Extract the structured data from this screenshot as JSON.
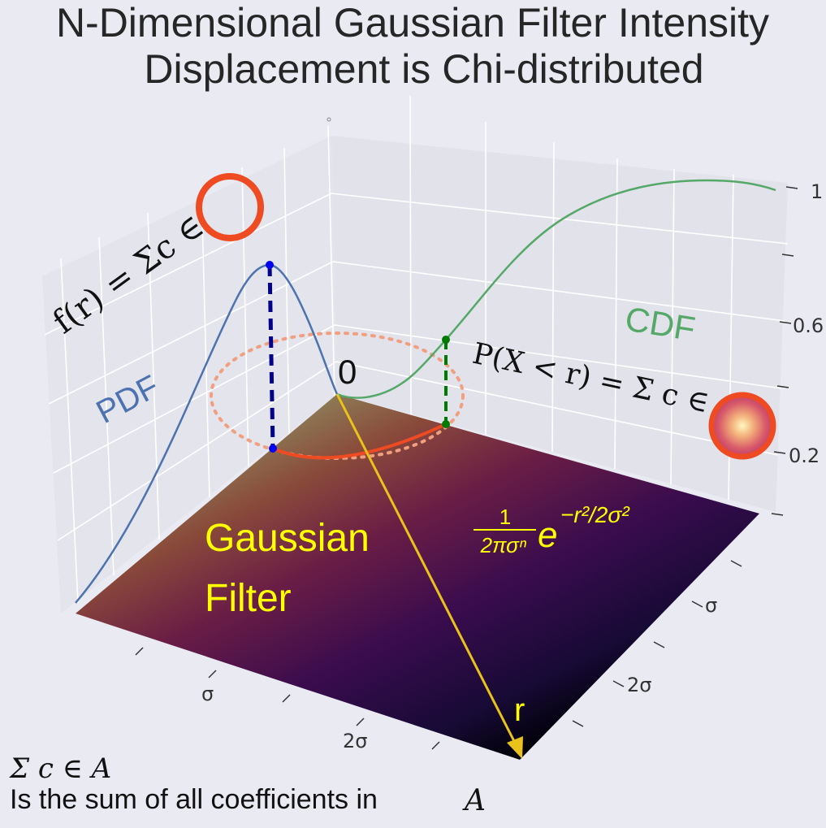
{
  "title_line1": "N-Dimensional Gaussian Filter Intensity",
  "title_line2": "Displacement is Chi-distributed",
  "pdf_label": "PDF",
  "cdf_label": "CDF",
  "pdf_formula": "f(r) = Σc ∈",
  "cdf_formula": "P(X < r) = Σ c ∈",
  "origin_label": "0",
  "r_label": "r",
  "gaussian_filter_line1": "Gaussian",
  "gaussian_filter_line2": "Filter",
  "gaussian_formula": {
    "numerator": "1",
    "denominator": "2πσⁿ",
    "base": "e",
    "exponent": "−r²/2σ²"
  },
  "right_axis_ticks": [
    "1",
    "0.6",
    "0.2"
  ],
  "bottom_axis_ticks": [
    "σ",
    "2σ"
  ],
  "right_front_ticks": [
    "σ",
    "2σ"
  ],
  "footnote_symbol": "Σ c ∈ A",
  "footnote_text": "Is the sum of all coefficients in",
  "footnote_var": "A",
  "colors": {
    "pdf": "#4c72b0",
    "cdf": "#55a868",
    "ring": "#ee4b22",
    "arrow": "#e9c21b",
    "annotation_text": "#ffff00",
    "background": "#eaeaf2"
  }
}
